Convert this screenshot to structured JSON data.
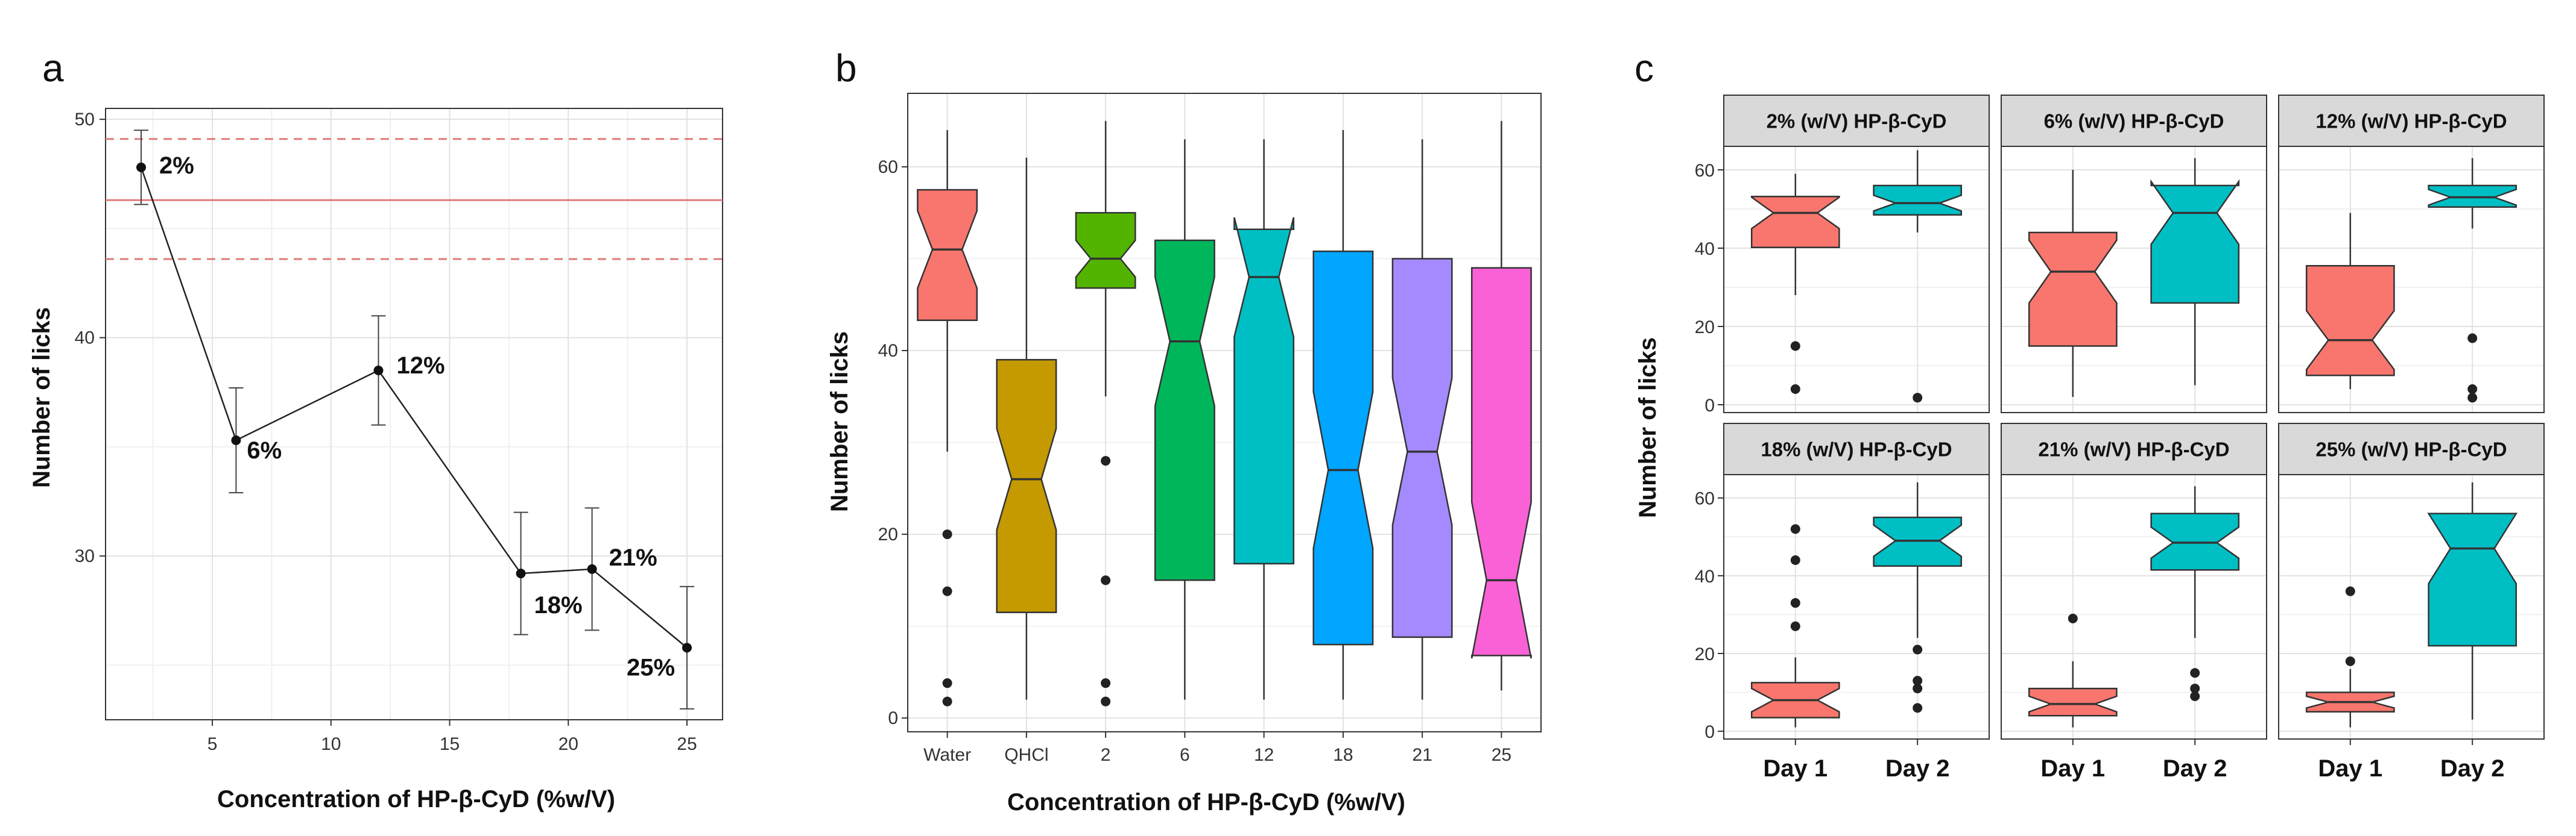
{
  "chart_data": [
    {
      "panel": "a",
      "type": "line",
      "xlabel": "Concentration of HP-β-CyD (%w/V)",
      "ylabel": "Number of licks",
      "xlim": [
        0.5,
        26.5
      ],
      "ylim": [
        22.5,
        50.5
      ],
      "xticks": [
        5,
        10,
        15,
        20,
        25
      ],
      "yticks": [
        30,
        40,
        50
      ],
      "grid": true,
      "reference_lines": {
        "mean": 46.3,
        "lower": 43.6,
        "upper": 49.1,
        "color": "#e07a7a"
      },
      "points": [
        {
          "x": 2,
          "y": 47.8,
          "err": 1.7,
          "label": "2%"
        },
        {
          "x": 6,
          "y": 35.3,
          "err": 2.4,
          "label": "6%"
        },
        {
          "x": 12,
          "y": 38.5,
          "err": 2.5,
          "label": "12%"
        },
        {
          "x": 18,
          "y": 29.2,
          "err": 2.8,
          "label": "18%"
        },
        {
          "x": 21,
          "y": 29.4,
          "err": 2.8,
          "label": "21%"
        },
        {
          "x": 25,
          "y": 25.8,
          "err": 2.8,
          "label": "25%"
        }
      ]
    },
    {
      "panel": "b",
      "type": "box",
      "xlabel": "Concentration of HP-β-CyD (%w/V)",
      "ylabel": "Number of licks",
      "ylim": [
        -1.5,
        68
      ],
      "yticks": [
        0,
        20,
        40,
        60
      ],
      "grid": true,
      "categories": [
        "Water",
        "QHCl",
        "2",
        "6",
        "12",
        "18",
        "21",
        "25"
      ],
      "boxes": [
        {
          "cat": "Water",
          "q1": 43.3,
          "median": 51,
          "q3": 57.5,
          "lo": 29,
          "hi": 64,
          "notch": [
            46.8,
            55.2
          ],
          "outliers": [
            20,
            13.8,
            3.8,
            1.8
          ],
          "color": "#f8766d"
        },
        {
          "cat": "QHCl",
          "q1": 11.5,
          "median": 26,
          "q3": 39,
          "lo": 2,
          "hi": 61,
          "notch": [
            20.5,
            31.5
          ],
          "outliers": [],
          "color": "#c49a00"
        },
        {
          "cat": "2",
          "q1": 46.8,
          "median": 50,
          "q3": 55,
          "lo": 35,
          "hi": 65,
          "notch": [
            48,
            52
          ],
          "outliers": [
            28,
            15,
            3.8,
            1.8
          ],
          "color": "#53b400"
        },
        {
          "cat": "6",
          "q1": 15,
          "median": 41,
          "q3": 52,
          "lo": 2,
          "hi": 63,
          "notch": [
            34,
            48
          ],
          "outliers": [],
          "color": "#00b65a"
        },
        {
          "cat": "12",
          "q1": 16.8,
          "median": 48,
          "q3": 53.2,
          "lo": 2,
          "hi": 63,
          "notch": [
            41.5,
            54.5
          ],
          "outliers": [],
          "color": "#00bfc4"
        },
        {
          "cat": "18",
          "q1": 8,
          "median": 27,
          "q3": 50.8,
          "lo": 2,
          "hi": 64,
          "notch": [
            18.5,
            35.5
          ],
          "outliers": [],
          "color": "#00a6ff"
        },
        {
          "cat": "21",
          "q1": 8.8,
          "median": 29,
          "q3": 50,
          "lo": 2,
          "hi": 63,
          "notch": [
            21,
            37
          ],
          "outliers": [],
          "color": "#a58aff"
        },
        {
          "cat": "25",
          "q1": 6.8,
          "median": 15,
          "q3": 49,
          "lo": 3,
          "hi": 65,
          "notch": [
            6.5,
            23.5
          ],
          "outliers": [],
          "color": "#fb61d7"
        }
      ]
    },
    {
      "panel": "c",
      "type": "box",
      "ylabel": "Number of licks",
      "ylim": [
        -2,
        66
      ],
      "yticks": [
        0,
        20,
        40,
        60
      ],
      "grid": true,
      "categories": [
        "Day 1",
        "Day 2"
      ],
      "colors": {
        "Day 1": "#f8766d",
        "Day 2": "#00bfc4"
      },
      "facets": [
        {
          "title": "2% (w/V) HP-β-CyD",
          "boxes": [
            {
              "cat": "Day 1",
              "q1": 40.2,
              "median": 49,
              "q3": 53.2,
              "lo": 28,
              "hi": 59,
              "notch": [
                45,
                53
              ],
              "outliers": [
                15,
                4
              ]
            },
            {
              "cat": "Day 2",
              "q1": 48.5,
              "median": 51.5,
              "q3": 56,
              "lo": 44,
              "hi": 65,
              "notch": [
                49.5,
                53.5
              ],
              "outliers": [
                1.8
              ]
            }
          ]
        },
        {
          "title": "6% (w/V) HP-β-CyD",
          "boxes": [
            {
              "cat": "Day 1",
              "q1": 15,
              "median": 34,
              "q3": 44,
              "lo": 2,
              "hi": 60,
              "notch": [
                26,
                42
              ],
              "outliers": []
            },
            {
              "cat": "Day 2",
              "q1": 26,
              "median": 49,
              "q3": 56,
              "lo": 5,
              "hi": 63,
              "notch": [
                41,
                57
              ],
              "outliers": []
            }
          ]
        },
        {
          "title": "12% (w/V) HP-β-CyD",
          "boxes": [
            {
              "cat": "Day 1",
              "q1": 7.5,
              "median": 16.5,
              "q3": 35.5,
              "lo": 4,
              "hi": 49,
              "notch": [
                9,
                24
              ],
              "outliers": []
            },
            {
              "cat": "Day 2",
              "q1": 50.5,
              "median": 53,
              "q3": 56,
              "lo": 45,
              "hi": 63,
              "notch": [
                51,
                55
              ],
              "outliers": [
                17,
                4,
                1.8
              ]
            }
          ]
        },
        {
          "title": "18% (w/V) HP-β-CyD",
          "boxes": [
            {
              "cat": "Day 1",
              "q1": 3.5,
              "median": 8,
              "q3": 12.5,
              "lo": 1,
              "hi": 19,
              "notch": [
                5,
                11
              ],
              "outliers": [
                52,
                44,
                33,
                27
              ]
            },
            {
              "cat": "Day 2",
              "q1": 42.5,
              "median": 49,
              "q3": 55,
              "lo": 24,
              "hi": 64,
              "notch": [
                45,
                53
              ],
              "outliers": [
                21,
                13,
                11,
                6
              ]
            }
          ]
        },
        {
          "title": "21% (w/V) HP-β-CyD",
          "boxes": [
            {
              "cat": "Day 1",
              "q1": 4,
              "median": 7,
              "q3": 11,
              "lo": 1,
              "hi": 18,
              "notch": [
                5,
                9
              ],
              "outliers": [
                29
              ]
            },
            {
              "cat": "Day 2",
              "q1": 41.5,
              "median": 48.5,
              "q3": 56,
              "lo": 24,
              "hi": 63,
              "notch": [
                44.5,
                52.5
              ],
              "outliers": [
                15,
                11,
                9
              ]
            }
          ]
        },
        {
          "title": "25% (w/V) HP-β-CyD",
          "boxes": [
            {
              "cat": "Day 1",
              "q1": 5,
              "median": 7.5,
              "q3": 10,
              "lo": 1,
              "hi": 16,
              "notch": [
                6,
                9
              ],
              "outliers": [
                36,
                18
              ]
            },
            {
              "cat": "Day 2",
              "q1": 22,
              "median": 47,
              "q3": 56,
              "lo": 3,
              "hi": 64,
              "notch": [
                38,
                56
              ],
              "outliers": []
            }
          ]
        }
      ]
    }
  ],
  "panel_labels": {
    "a": "a",
    "b": "b",
    "c": "c"
  }
}
